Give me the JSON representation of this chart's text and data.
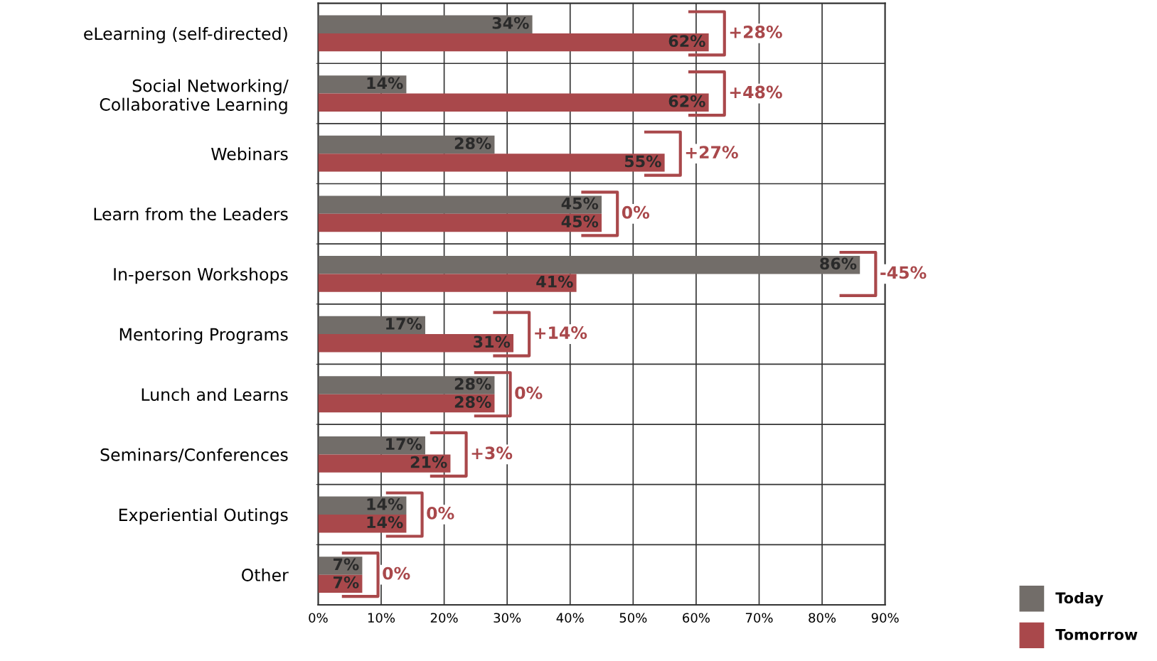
{
  "chart_data": {
    "type": "bar",
    "orientation": "horizontal",
    "categories": [
      "eLearning (self-directed)",
      "Social Networking/\nCollaborative Learning",
      "Webinars",
      "Learn from the Leaders",
      "In-person Workshops",
      "Mentoring Programs",
      "Lunch and Learns",
      "Seminars/Conferences",
      "Experiential Outings",
      "Other"
    ],
    "series": [
      {
        "name": "Today",
        "color": "#726d69",
        "values": [
          34,
          14,
          28,
          45,
          86,
          17,
          28,
          17,
          14,
          7
        ],
        "value_labels": [
          "34%",
          "14%",
          "28%",
          "45%",
          "86%",
          "17%",
          "28%",
          "17%",
          "14%",
          "7%"
        ]
      },
      {
        "name": "Tomorrow",
        "color": "#a9484b",
        "values": [
          62,
          62,
          55,
          45,
          41,
          31,
          28,
          21,
          14,
          7
        ],
        "value_labels": [
          "62%",
          "62%",
          "55%",
          "45%",
          "41%",
          "31%",
          "28%",
          "21%",
          "14%",
          "7%"
        ]
      }
    ],
    "xlim": [
      0,
      90
    ],
    "xticks": [
      {
        "value": 0,
        "label": "0%"
      },
      {
        "value": 10,
        "label": "10%"
      },
      {
        "value": 20,
        "label": "20%"
      },
      {
        "value": 30,
        "label": "30%"
      },
      {
        "value": 40,
        "label": "40%"
      },
      {
        "value": 50,
        "label": "50%"
      },
      {
        "value": 60,
        "label": "60%"
      },
      {
        "value": 70,
        "label": "70%"
      },
      {
        "value": 80,
        "label": "80%"
      },
      {
        "value": 90,
        "label": "90%"
      }
    ],
    "annotations": [
      {
        "text": "+28%",
        "x": 62,
        "y": "eLearning (self-directed)"
      },
      {
        "text": "+48%",
        "x": 62,
        "y": "Social Networking/\nCollaborative Learning"
      },
      {
        "text": "+27%",
        "x": 55,
        "y": "Webinars"
      },
      {
        "text": "0%",
        "x": 45,
        "y": "Learn from the Leaders"
      },
      {
        "text": "-45%",
        "x": 86,
        "y": "In-person Workshops"
      },
      {
        "text": "+14%",
        "x": 31,
        "y": "Mentoring Programs"
      },
      {
        "text": "0%",
        "x": 28,
        "y": "Lunch and Learns"
      },
      {
        "text": "+3%",
        "x": 21,
        "y": "Seminars/Conferences"
      },
      {
        "text": "0%",
        "x": 14,
        "y": "Experiential Outings"
      },
      {
        "text": "0%",
        "x": 7,
        "y": "Other"
      }
    ],
    "grid": true,
    "legend": "bottom right"
  }
}
